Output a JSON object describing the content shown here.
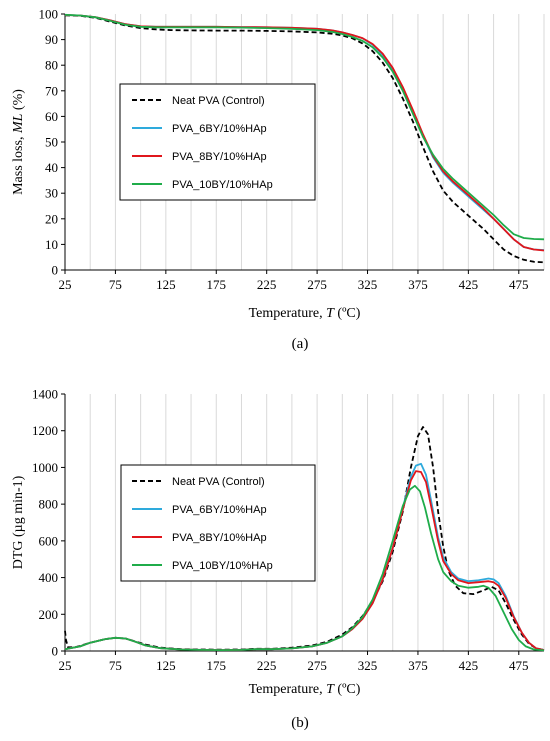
{
  "chart_data": [
    {
      "type": "line",
      "panel_label": "(a)",
      "xlabel_prefix": "Temperature, ",
      "xlabel_var": "T",
      "xlabel_unit": " (ºC)",
      "ylabel_prefix": "Mass loss, ",
      "ylabel_var": "ML",
      "ylabel_unit": " (%)",
      "xlim": [
        25,
        500
      ],
      "ylim": [
        0,
        100
      ],
      "xticks": [
        25,
        75,
        125,
        175,
        225,
        275,
        325,
        375,
        425,
        475
      ],
      "xgrid": [
        25,
        50,
        75,
        100,
        125,
        150,
        175,
        200,
        225,
        250,
        275,
        300,
        325,
        350,
        375,
        400,
        425,
        450,
        475,
        500
      ],
      "yticks": [
        0,
        10,
        20,
        30,
        40,
        50,
        60,
        70,
        80,
        90,
        100
      ],
      "grid": true,
      "legend_position": "left",
      "series": [
        {
          "name": "Neat PVA (Control)",
          "color": "#000000",
          "dash": true,
          "x": [
            25,
            40,
            55,
            70,
            85,
            100,
            115,
            130,
            150,
            175,
            200,
            225,
            250,
            275,
            290,
            300,
            310,
            320,
            330,
            340,
            350,
            360,
            370,
            380,
            390,
            400,
            410,
            420,
            430,
            440,
            450,
            460,
            470,
            480,
            490,
            500
          ],
          "y": [
            99.5,
            99.3,
            98.5,
            97.0,
            95.5,
            94.5,
            94.0,
            93.7,
            93.6,
            93.5,
            93.5,
            93.4,
            93.2,
            92.8,
            92.3,
            91.6,
            90.5,
            88.5,
            85.5,
            81.0,
            75.0,
            67.0,
            58.0,
            48.0,
            38.5,
            31.0,
            26.5,
            23.0,
            19.5,
            16.0,
            12.0,
            8.0,
            5.5,
            4.0,
            3.2,
            3.0
          ]
        },
        {
          "name": "PVA_6BY/10%HAp",
          "color": "#2eaadc",
          "dash": false,
          "x": [
            25,
            40,
            55,
            70,
            85,
            100,
            115,
            130,
            150,
            175,
            200,
            225,
            250,
            275,
            290,
            300,
            310,
            320,
            330,
            340,
            350,
            360,
            370,
            380,
            390,
            400,
            410,
            420,
            430,
            440,
            450,
            460,
            470,
            480,
            490,
            500
          ],
          "y": [
            99.6,
            99.4,
            98.8,
            97.5,
            96.0,
            95.2,
            95.0,
            95.0,
            95.0,
            95.0,
            94.9,
            94.8,
            94.6,
            94.2,
            93.6,
            92.8,
            91.8,
            90.5,
            88.0,
            84.0,
            78.5,
            71.0,
            62.0,
            52.5,
            44.0,
            38.0,
            34.0,
            30.5,
            27.0,
            23.5,
            20.0,
            16.0,
            12.0,
            9.0,
            8.0,
            7.8
          ]
        },
        {
          "name": "PVA_8BY/10%HAp",
          "color": "#e0161c",
          "dash": false,
          "x": [
            25,
            40,
            55,
            70,
            85,
            100,
            115,
            130,
            150,
            175,
            200,
            225,
            250,
            275,
            290,
            300,
            310,
            320,
            330,
            340,
            350,
            360,
            370,
            380,
            390,
            400,
            410,
            420,
            430,
            440,
            450,
            460,
            470,
            480,
            490,
            500
          ],
          "y": [
            99.6,
            99.4,
            98.8,
            97.5,
            96.0,
            95.2,
            95.0,
            95.0,
            95.0,
            95.0,
            94.9,
            94.8,
            94.6,
            94.2,
            93.6,
            92.8,
            91.8,
            90.6,
            88.3,
            84.5,
            79.0,
            71.5,
            62.5,
            53.0,
            44.5,
            38.5,
            34.5,
            31.0,
            27.5,
            24.0,
            20.0,
            16.0,
            12.0,
            9.0,
            8.0,
            7.6
          ]
        },
        {
          "name": "PVA_10BY/10%HAp",
          "color": "#1fac4a",
          "dash": false,
          "x": [
            25,
            40,
            55,
            70,
            85,
            100,
            115,
            130,
            150,
            175,
            200,
            225,
            250,
            275,
            290,
            300,
            310,
            320,
            330,
            340,
            350,
            360,
            370,
            380,
            390,
            400,
            410,
            420,
            430,
            440,
            450,
            460,
            470,
            480,
            490,
            500
          ],
          "y": [
            99.7,
            99.4,
            98.7,
            97.3,
            95.8,
            95.0,
            94.8,
            94.8,
            94.8,
            94.8,
            94.7,
            94.5,
            94.2,
            93.7,
            93.0,
            92.2,
            91.0,
            89.5,
            87.0,
            83.0,
            77.5,
            70.0,
            61.0,
            52.0,
            45.0,
            39.5,
            35.5,
            32.0,
            28.5,
            25.0,
            21.5,
            17.5,
            14.0,
            12.5,
            12.1,
            12.0
          ]
        }
      ]
    },
    {
      "type": "line",
      "panel_label": "(b)",
      "xlabel_prefix": "Temperature, ",
      "xlabel_var": "T",
      "xlabel_unit": " (ºC)",
      "ylabel_prefix": "DTG (µg min-1)",
      "ylabel_var": "",
      "ylabel_unit": "",
      "xlim": [
        25,
        500
      ],
      "ylim": [
        0,
        1400
      ],
      "xticks": [
        25,
        75,
        125,
        175,
        225,
        275,
        325,
        375,
        425,
        475
      ],
      "xgrid": [
        25,
        50,
        75,
        100,
        125,
        150,
        175,
        200,
        225,
        250,
        275,
        300,
        325,
        350,
        375,
        400,
        425,
        450,
        475,
        500
      ],
      "yticks": [
        0,
        200,
        400,
        600,
        800,
        1000,
        1200,
        1400
      ],
      "grid": true,
      "legend_position": "left",
      "series": [
        {
          "name": "Neat PVA (Control)",
          "color": "#000000",
          "dash": true,
          "x": [
            25,
            26,
            28,
            35,
            50,
            65,
            75,
            85,
            95,
            105,
            120,
            140,
            160,
            180,
            200,
            215,
            230,
            250,
            270,
            285,
            300,
            310,
            320,
            330,
            340,
            350,
            360,
            368,
            375,
            380,
            385,
            390,
            395,
            400,
            405,
            412,
            420,
            430,
            440,
            448,
            455,
            462,
            470,
            478,
            485,
            492,
            500
          ],
          "y": [
            110,
            60,
            20,
            20,
            45,
            65,
            72,
            68,
            52,
            35,
            18,
            10,
            8,
            7,
            8,
            12,
            12,
            18,
            30,
            50,
            90,
            130,
            190,
            270,
            380,
            540,
            760,
            1000,
            1170,
            1220,
            1180,
            1000,
            760,
            570,
            440,
            355,
            315,
            310,
            330,
            350,
            330,
            260,
            170,
            90,
            40,
            15,
            5
          ]
        },
        {
          "name": "PVA_6BY/10%HAp",
          "color": "#2eaadc",
          "dash": false,
          "x": [
            25,
            30,
            40,
            50,
            65,
            75,
            85,
            95,
            105,
            120,
            140,
            160,
            180,
            200,
            215,
            230,
            250,
            270,
            285,
            300,
            310,
            320,
            330,
            340,
            350,
            360,
            368,
            373,
            378,
            383,
            388,
            395,
            400,
            408,
            415,
            425,
            435,
            445,
            450,
            455,
            462,
            470,
            478,
            485,
            492,
            500
          ],
          "y": [
            10,
            15,
            25,
            45,
            65,
            72,
            68,
            50,
            30,
            15,
            8,
            6,
            5,
            6,
            10,
            10,
            14,
            25,
            45,
            80,
            120,
            175,
            260,
            390,
            560,
            780,
            950,
            1010,
            1020,
            960,
            820,
            620,
            510,
            430,
            395,
            380,
            385,
            395,
            390,
            370,
            300,
            190,
            100,
            45,
            15,
            5
          ]
        },
        {
          "name": "PVA_8BY/10%HAp",
          "color": "#e0161c",
          "dash": false,
          "x": [
            25,
            30,
            40,
            50,
            65,
            75,
            85,
            95,
            105,
            120,
            140,
            160,
            180,
            200,
            215,
            230,
            250,
            270,
            285,
            300,
            310,
            320,
            330,
            340,
            350,
            360,
            368,
            373,
            378,
            383,
            388,
            395,
            400,
            408,
            415,
            425,
            435,
            445,
            450,
            455,
            462,
            470,
            478,
            485,
            492,
            500
          ],
          "y": [
            10,
            15,
            25,
            45,
            65,
            72,
            68,
            50,
            30,
            15,
            8,
            6,
            5,
            6,
            10,
            10,
            14,
            25,
            45,
            80,
            120,
            175,
            260,
            390,
            560,
            770,
            930,
            980,
            975,
            920,
            790,
            600,
            490,
            420,
            385,
            370,
            375,
            380,
            375,
            355,
            290,
            185,
            100,
            45,
            15,
            5
          ]
        },
        {
          "name": "PVA_10BY/10%HAp",
          "color": "#1fac4a",
          "dash": false,
          "x": [
            25,
            30,
            40,
            50,
            65,
            75,
            85,
            95,
            105,
            120,
            140,
            160,
            180,
            200,
            215,
            230,
            250,
            270,
            285,
            300,
            310,
            320,
            330,
            340,
            350,
            360,
            367,
            372,
            377,
            382,
            388,
            395,
            400,
            408,
            415,
            425,
            435,
            440,
            445,
            452,
            460,
            468,
            475,
            482,
            490,
            500
          ],
          "y": [
            10,
            15,
            25,
            45,
            65,
            72,
            68,
            50,
            30,
            15,
            8,
            6,
            5,
            6,
            10,
            10,
            14,
            25,
            45,
            80,
            125,
            185,
            280,
            420,
            600,
            790,
            880,
            900,
            870,
            780,
            640,
            500,
            430,
            380,
            355,
            345,
            350,
            355,
            345,
            300,
            210,
            120,
            60,
            25,
            8,
            3
          ]
        }
      ]
    }
  ]
}
